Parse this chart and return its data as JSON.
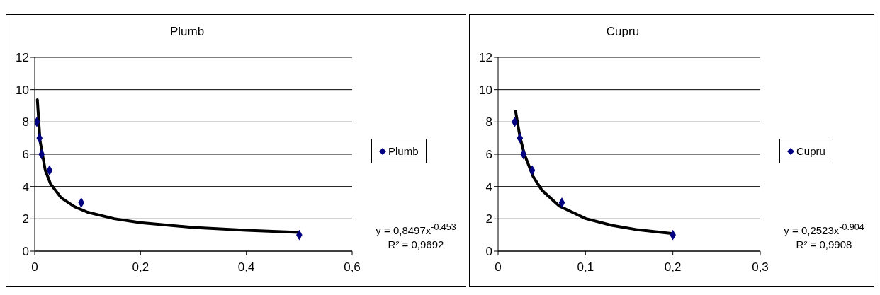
{
  "chart_data": [
    {
      "type": "scatter",
      "title": "Plumb",
      "grid": "y",
      "legend": "right",
      "xlim": [
        0,
        0.6
      ],
      "xticks": [
        0,
        {
          "value": 0.2,
          "label": "0,2"
        },
        {
          "value": 0.4,
          "label": "0,4"
        },
        {
          "value": 0.6,
          "label": "0,6"
        }
      ],
      "ylim": [
        0,
        12
      ],
      "yticks": [
        0,
        2,
        4,
        6,
        8,
        10,
        12
      ],
      "annotations": [
        "y = 0,8497x$^{-0.453}$",
        "R² = 0,9692"
      ],
      "series": [
        {
          "name": "Plumb",
          "marker": "diamond",
          "color": "#000080",
          "x": [
            0.004,
            0.009,
            0.013,
            0.028,
            0.088,
            0.5
          ],
          "values": [
            8,
            7,
            6,
            5,
            3,
            1
          ]
        },
        {
          "type": "line",
          "marker": "none",
          "color": "#000000",
          "x": [
            0.005,
            0.01,
            0.02,
            0.03,
            0.05,
            0.075,
            0.1,
            0.15,
            0.2,
            0.3,
            0.4,
            0.5
          ],
          "values": [
            9.37,
            6.84,
            5.0,
            4.16,
            3.3,
            2.75,
            2.41,
            2.01,
            1.76,
            1.47,
            1.29,
            1.16
          ]
        }
      ]
    },
    {
      "type": "scatter",
      "title": "Cupru",
      "grid": "y",
      "legend": "right",
      "xlim": [
        0,
        0.3
      ],
      "xticks": [
        0,
        {
          "value": 0.1,
          "label": "0,1"
        },
        {
          "value": 0.2,
          "label": "0,2"
        },
        {
          "value": 0.3,
          "label": "0,3"
        }
      ],
      "ylim": [
        0,
        12
      ],
      "yticks": [
        0,
        2,
        4,
        6,
        8,
        10,
        12
      ],
      "annotations": [
        "y = 0,2523x$^{-0.904}$",
        "R² = 0,9908"
      ],
      "series": [
        {
          "name": "Cupru",
          "marker": "diamond",
          "color": "#000080",
          "x": [
            0.019,
            0.025,
            0.029,
            0.039,
            0.073,
            0.2
          ],
          "values": [
            8,
            7,
            6,
            5,
            3,
            1
          ]
        },
        {
          "type": "line",
          "marker": "none",
          "color": "#000000",
          "x": [
            0.02,
            0.025,
            0.03,
            0.04,
            0.05,
            0.07,
            0.1,
            0.13,
            0.16,
            0.2
          ],
          "values": [
            8.67,
            7.08,
            6.01,
            4.63,
            3.78,
            2.79,
            2.02,
            1.6,
            1.32,
            1.08
          ]
        }
      ]
    }
  ]
}
